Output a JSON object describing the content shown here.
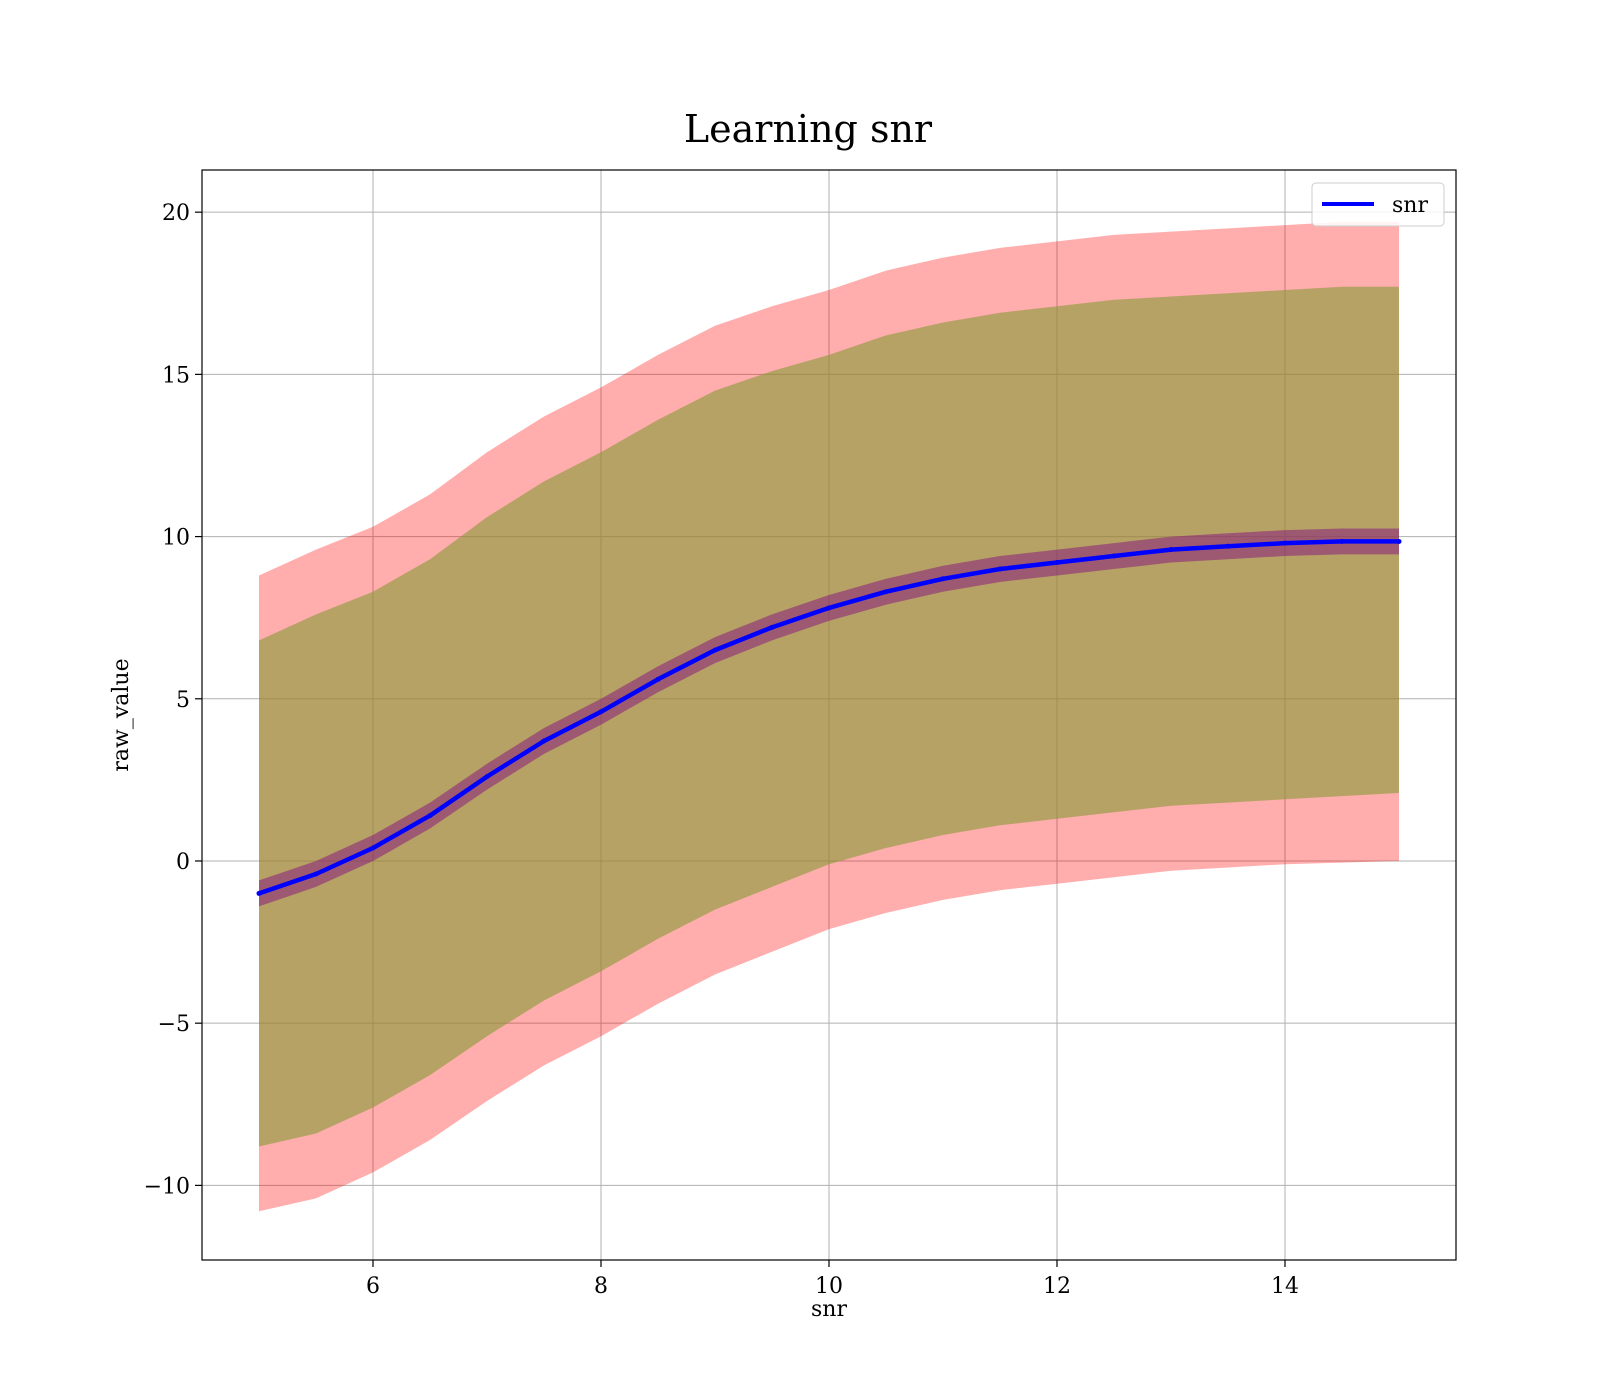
{
  "chart_data": {
    "type": "line",
    "title": "Learning snr",
    "xlabel": "snr",
    "ylabel": "raw_value",
    "xlim": [
      4.5,
      15.5
    ],
    "ylim": [
      -12.3,
      21.3
    ],
    "xticks": [
      6,
      8,
      10,
      12,
      14
    ],
    "yticks": [
      -10,
      -5,
      0,
      5,
      10,
      15,
      20
    ],
    "xtick_labels": [
      "6",
      "8",
      "10",
      "12",
      "14"
    ],
    "ytick_labels": [
      "−10",
      "−5",
      "0",
      "5",
      "10",
      "15",
      "20"
    ],
    "grid": true,
    "legend": {
      "position": "top-right",
      "entries": [
        "snr"
      ]
    },
    "colors": {
      "line": "#0000ff",
      "outer_band": "#ff0000",
      "inner_band": "#8b9b3a",
      "line_band": "#800080"
    },
    "series": [
      {
        "name": "snr",
        "x": [
          5.0,
          5.5,
          6.0,
          6.5,
          7.0,
          7.5,
          8.0,
          8.5,
          9.0,
          9.5,
          10.0,
          10.5,
          11.0,
          11.5,
          12.0,
          12.5,
          13.0,
          13.5,
          14.0,
          14.5,
          15.0
        ],
        "values": [
          -1.0,
          -0.4,
          0.4,
          1.4,
          2.6,
          3.7,
          4.6,
          5.6,
          6.5,
          7.2,
          7.8,
          8.3,
          8.7,
          9.0,
          9.2,
          9.4,
          9.6,
          9.7,
          9.8,
          9.85,
          9.85
        ]
      }
    ],
    "bands": [
      {
        "x": [
          5.0,
          5.5,
          6.0,
          6.5,
          7.0,
          7.5,
          8.0,
          8.5,
          9.0,
          9.5,
          10.0,
          10.5,
          11.0,
          11.5,
          12.0,
          12.5,
          13.0,
          13.5,
          14.0,
          14.5,
          15.0
        ],
        "upper": [
          8.8,
          9.6,
          10.3,
          11.3,
          12.6,
          13.7,
          14.6,
          15.6,
          16.5,
          17.1,
          17.6,
          18.2,
          18.6,
          18.9,
          19.1,
          19.3,
          19.4,
          19.5,
          19.6,
          19.7,
          19.7
        ],
        "lower": [
          -10.8,
          -10.4,
          -9.6,
          -8.6,
          -7.4,
          -6.3,
          -5.4,
          -4.4,
          -3.5,
          -2.8,
          -2.1,
          -1.6,
          -1.2,
          -0.9,
          -0.7,
          -0.5,
          -0.3,
          -0.2,
          -0.1,
          -0.05,
          0.0
        ]
      },
      {
        "x": [
          5.0,
          5.5,
          6.0,
          6.5,
          7.0,
          7.5,
          8.0,
          8.5,
          9.0,
          9.5,
          10.0,
          10.5,
          11.0,
          11.5,
          12.0,
          12.5,
          13.0,
          13.5,
          14.0,
          14.5,
          15.0
        ],
        "upper": [
          6.8,
          7.6,
          8.3,
          9.3,
          10.6,
          11.7,
          12.6,
          13.6,
          14.5,
          15.1,
          15.6,
          16.2,
          16.6,
          16.9,
          17.1,
          17.3,
          17.4,
          17.5,
          17.6,
          17.7,
          17.7
        ],
        "lower": [
          -8.8,
          -8.4,
          -7.6,
          -6.6,
          -5.4,
          -4.3,
          -3.4,
          -2.4,
          -1.5,
          -0.8,
          -0.1,
          0.4,
          0.8,
          1.1,
          1.3,
          1.5,
          1.7,
          1.8,
          1.9,
          2.0,
          2.1
        ]
      },
      {
        "x": [
          5.0,
          5.5,
          6.0,
          6.5,
          7.0,
          7.5,
          8.0,
          8.5,
          9.0,
          9.5,
          10.0,
          10.5,
          11.0,
          11.5,
          12.0,
          12.5,
          13.0,
          13.5,
          14.0,
          14.5,
          15.0
        ],
        "upper": [
          -0.6,
          0.0,
          0.8,
          1.8,
          3.0,
          4.1,
          5.0,
          6.0,
          6.9,
          7.6,
          8.2,
          8.7,
          9.1,
          9.4,
          9.6,
          9.8,
          10.0,
          10.1,
          10.2,
          10.25,
          10.25
        ],
        "lower": [
          -1.4,
          -0.8,
          0.0,
          1.0,
          2.2,
          3.3,
          4.2,
          5.2,
          6.1,
          6.8,
          7.4,
          7.9,
          8.3,
          8.6,
          8.8,
          9.0,
          9.2,
          9.3,
          9.4,
          9.45,
          9.45
        ]
      }
    ]
  }
}
